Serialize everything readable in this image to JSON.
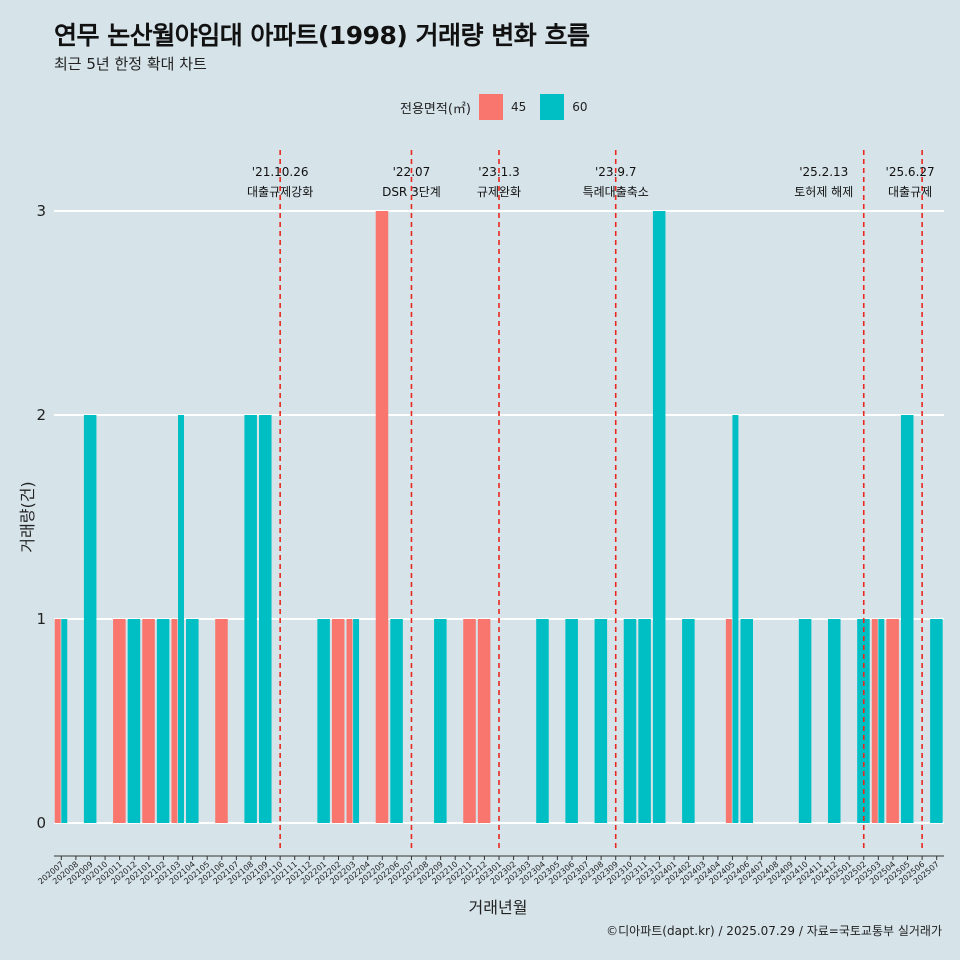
{
  "chart_data": {
    "type": "bar",
    "title": "연무 논산월야임대 아파트(1998) 거래량 변화 흐름",
    "subtitle": "최근 5년 한정 확대 차트",
    "xlabel": "거래년월",
    "ylabel": "거래량(건)",
    "ylim": [
      0,
      3
    ],
    "yticks": [
      0,
      1,
      2,
      3
    ],
    "legend": {
      "title": "전용면적(㎡)",
      "placement": "top",
      "entries": [
        "45",
        "60"
      ]
    },
    "colors": {
      "45": "#f8766d",
      "60": "#00bfc4"
    },
    "categories": [
      "202007",
      "202008",
      "202009",
      "202010",
      "202011",
      "202012",
      "202101",
      "202102",
      "202103",
      "202104",
      "202105",
      "202106",
      "202107",
      "202108",
      "202109",
      "202110",
      "202111",
      "202112",
      "202201",
      "202202",
      "202203",
      "202204",
      "202205",
      "202206",
      "202207",
      "202208",
      "202209",
      "202210",
      "202211",
      "202212",
      "202301",
      "202302",
      "202303",
      "202304",
      "202305",
      "202306",
      "202307",
      "202308",
      "202309",
      "202310",
      "202311",
      "202312",
      "202401",
      "202402",
      "202403",
      "202404",
      "202405",
      "202406",
      "202407",
      "202408",
      "202409",
      "202410",
      "202411",
      "202412",
      "202501",
      "202502",
      "202503",
      "202504",
      "202505",
      "202506",
      "202507"
    ],
    "series": [
      {
        "name": "45",
        "values": [
          1,
          0,
          0,
          0,
          1,
          0,
          1,
          0,
          1,
          0,
          0,
          1,
          0,
          0,
          0,
          0,
          0,
          0,
          0,
          1,
          1,
          0,
          3,
          0,
          0,
          0,
          0,
          0,
          1,
          1,
          0,
          0,
          0,
          0,
          0,
          0,
          0,
          0,
          0,
          0,
          0,
          0,
          0,
          0,
          0,
          0,
          1,
          0,
          0,
          0,
          0,
          0,
          0,
          0,
          0,
          0,
          1,
          1,
          0,
          0,
          0
        ]
      },
      {
        "name": "60",
        "values": [
          1,
          0,
          2,
          0,
          0,
          1,
          0,
          1,
          2,
          1,
          0,
          0,
          0,
          2,
          2,
          0,
          0,
          0,
          1,
          0,
          1,
          0,
          0,
          1,
          0,
          0,
          1,
          0,
          0,
          0,
          0,
          0,
          0,
          1,
          0,
          1,
          0,
          1,
          0,
          1,
          1,
          3,
          0,
          1,
          0,
          0,
          2,
          1,
          0,
          0,
          0,
          1,
          0,
          1,
          0,
          1,
          1,
          0,
          2,
          0,
          1
        ]
      }
    ],
    "annotations": [
      {
        "date": "'21.10.26",
        "label": "대출규제강화",
        "at": "202110"
      },
      {
        "date": "'22.07",
        "label": "DSR 3단계",
        "at": "202207"
      },
      {
        "date": "'23.1.3",
        "label": "규제완화",
        "at": "202301"
      },
      {
        "date": "'23.9.7",
        "label": "특례대출축소",
        "at": "202309"
      },
      {
        "date": "'25.2.13",
        "label": "토허제 해제",
        "at": "202502"
      },
      {
        "date": "'25.6.27",
        "label": "대출규제",
        "at": "202506"
      }
    ]
  },
  "caption": "©디아파트(dapt.kr) / 2025.07.29 / 자료=국토교통부 실거래가"
}
